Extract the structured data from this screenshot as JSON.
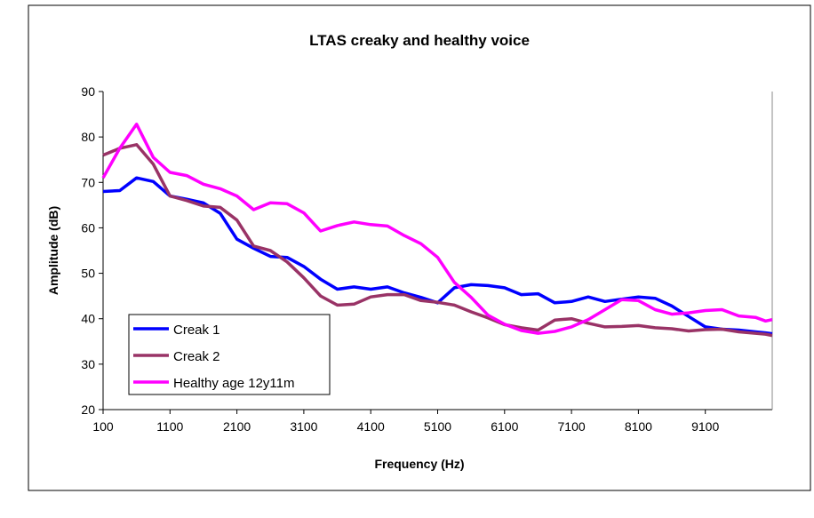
{
  "chart_data": {
    "type": "line",
    "title": "LTAS creaky and healthy voice",
    "xlabel": "Frequency (Hz)",
    "ylabel": "Amplitude (dB)",
    "xlim": [
      100,
      10100
    ],
    "ylim": [
      20,
      90
    ],
    "xticks": [
      100,
      1100,
      2100,
      3100,
      4100,
      5100,
      6100,
      7100,
      8100,
      9100
    ],
    "yticks": [
      20,
      30,
      40,
      50,
      60,
      70,
      80,
      90
    ],
    "grid": false,
    "legend_position": "bottom-left",
    "x": [
      100,
      350,
      600,
      850,
      1100,
      1350,
      1600,
      1850,
      2100,
      2350,
      2600,
      2850,
      3100,
      3350,
      3600,
      3850,
      4100,
      4350,
      4600,
      4850,
      5100,
      5350,
      5600,
      5850,
      6100,
      6350,
      6600,
      6850,
      7100,
      7350,
      7600,
      7850,
      8100,
      8350,
      8600,
      8850,
      9100,
      9350,
      9600,
      9850,
      10000,
      10100
    ],
    "series": [
      {
        "name": "Creak 1",
        "color": "#0000ff",
        "values": [
          68,
          68.2,
          71,
          70.2,
          67,
          66.3,
          65.5,
          63.2,
          57.5,
          55.5,
          53.7,
          53.5,
          51.5,
          48.7,
          46.5,
          47,
          46.5,
          47,
          45.7,
          44.7,
          43.5,
          46.8,
          47.5,
          47.3,
          46.8,
          45.3,
          45.5,
          43.5,
          43.8,
          44.8,
          43.8,
          44.3,
          44.8,
          44.5,
          42.8,
          40.5,
          38.2,
          37.7,
          37.5,
          37.1,
          36.9,
          36.7
        ]
      },
      {
        "name": "Creak 2",
        "color": "#993366",
        "values": [
          76,
          77.5,
          78.3,
          74,
          67,
          66,
          64.8,
          64.5,
          61.7,
          56,
          55,
          52.5,
          49,
          45,
          43,
          43.2,
          44.8,
          45.3,
          45.3,
          44,
          43.6,
          43,
          41.5,
          40.2,
          38.7,
          38,
          37.5,
          39.7,
          40,
          39,
          38.2,
          38.3,
          38.5,
          38,
          37.8,
          37.3,
          37.6,
          37.7,
          37.1,
          36.8,
          36.6,
          36.3
        ]
      },
      {
        "name": "Healthy age 12y11m",
        "color": "#ff00ff",
        "values": [
          71,
          77.5,
          82.8,
          75.5,
          72.2,
          71.5,
          69.6,
          68.6,
          67,
          64,
          65.5,
          65.3,
          63.3,
          59.3,
          60.5,
          61.3,
          60.7,
          60.4,
          58.3,
          56.5,
          53.5,
          48,
          44.7,
          40.8,
          38.8,
          37.4,
          36.8,
          37.2,
          38.2,
          39.8,
          42,
          44.2,
          44,
          42,
          41,
          41.3,
          41.8,
          42,
          40.6,
          40.3,
          39.5,
          39.8
        ]
      }
    ]
  }
}
